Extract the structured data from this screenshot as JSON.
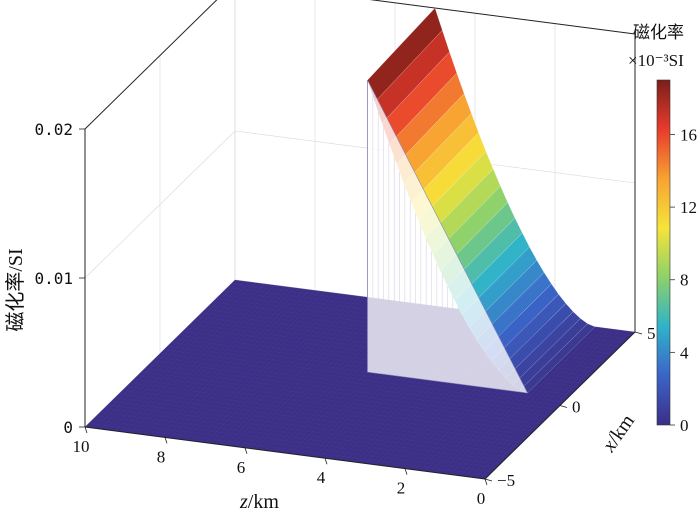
{
  "chart_data": {
    "type": "surface",
    "xlabel_var": "z",
    "xlabel_unit": "/km",
    "ylabel_var": "x",
    "ylabel_unit": "/km",
    "zlabel": "磁化率/SI",
    "x_ticks": [
      "10",
      "8",
      "6",
      "4",
      "2",
      "0"
    ],
    "y_ticks": [
      "5",
      "0",
      "−5"
    ],
    "z_ticks": [
      "0.02",
      "0.01",
      "0"
    ],
    "xlim": [
      0,
      10
    ],
    "ylim": [
      -5,
      5
    ],
    "zlim": [
      0,
      0.02
    ],
    "colorbar": {
      "title_line1": "磁化率",
      "title_line2": "×10⁻³SI",
      "ticks": [
        "16",
        "12",
        "8",
        "4",
        "0"
      ],
      "range": [
        0,
        19
      ],
      "colors": [
        "#3b2f86",
        "#3b64c8",
        "#2fb3c9",
        "#8ed16a",
        "#f6e43a",
        "#f7a233",
        "#e83b2c",
        "#7a1f1a"
      ]
    },
    "series": [
      {
        "structure": "dipping dyke",
        "x_top_km": 5,
        "x_bottom_km": 1,
        "depth_range_km": [
          0,
          5
        ],
        "susceptibility_top_SI": 0.02,
        "susceptibility_bottom_SI": 0.003,
        "background_SI": 0
      }
    ],
    "grid": true
  }
}
